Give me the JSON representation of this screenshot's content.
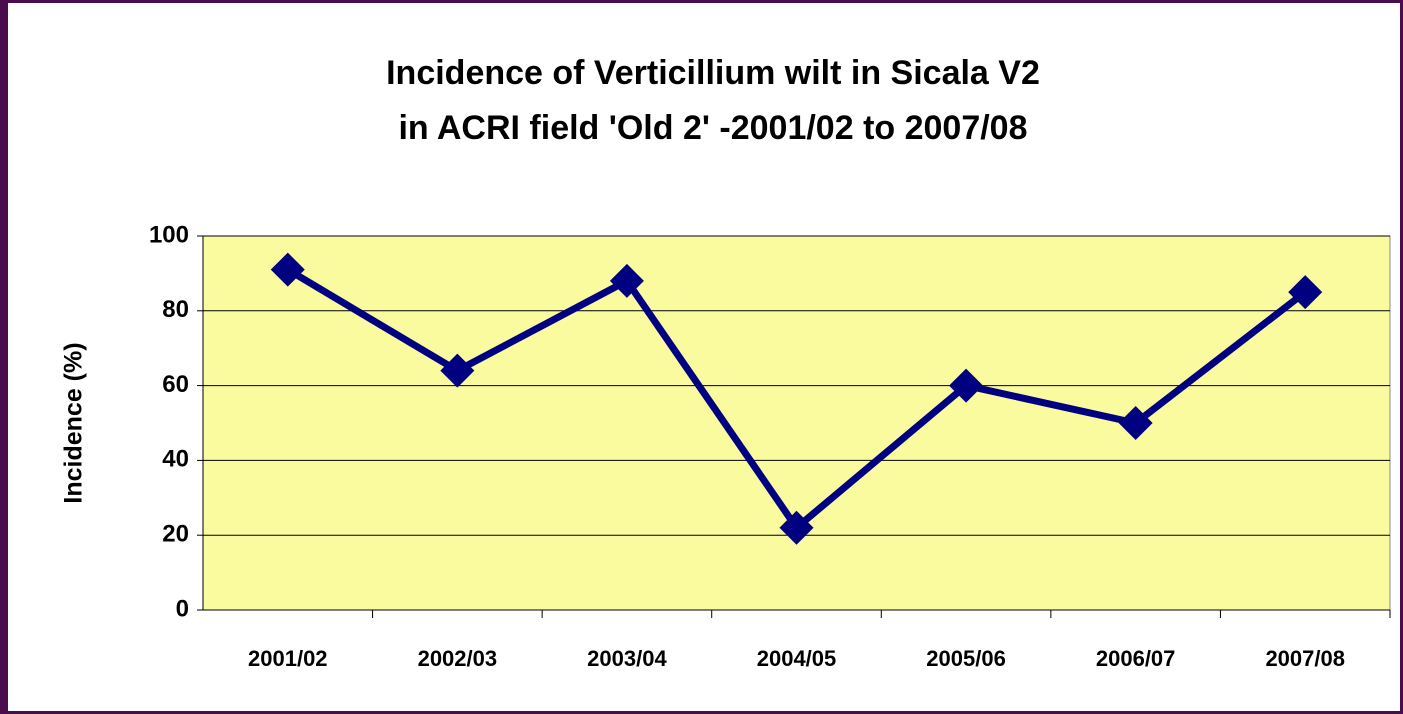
{
  "chart_data": {
    "type": "line",
    "title": [
      "Incidence of Verticillium wilt in Sicala V2",
      "in ACRI field 'Old 2' -2001/02 to 2007/08"
    ],
    "y_label": "Incidence (%)",
    "categories": [
      "2001/02",
      "2002/03",
      "2003/04",
      "2004/05",
      "2005/06",
      "2006/07",
      "2007/08"
    ],
    "series": [
      {
        "name": "Incidence",
        "color": "#000080",
        "values": [
          91,
          64,
          88,
          22,
          60,
          50,
          85
        ]
      }
    ],
    "ylim": [
      0,
      100
    ],
    "yticks": [
      0,
      20,
      40,
      60,
      80,
      100
    ],
    "grid": true,
    "plot_background": "#fafa9e"
  }
}
